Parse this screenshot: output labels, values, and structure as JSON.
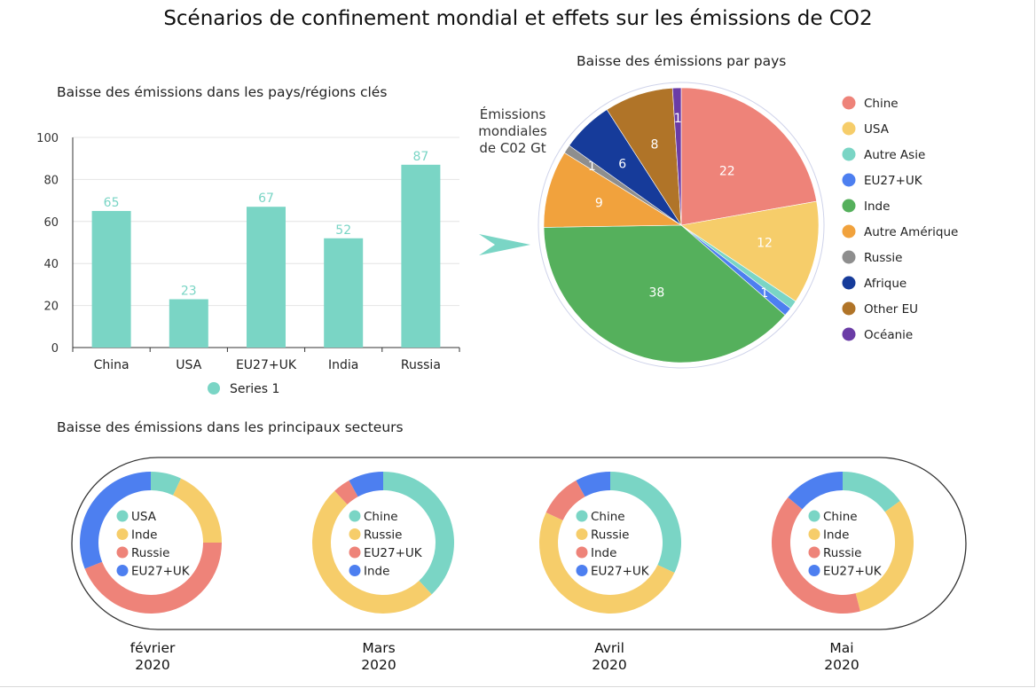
{
  "header": {
    "title": "Scénarios de confinement mondial et effets sur les émissions de CO2"
  },
  "colors": {
    "teal": "#7ad5c5",
    "yellow": "#f6cd6a",
    "salmon": "#ee8379",
    "blue": "#4d7ff0",
    "green": "#55b05c",
    "orange": "#f1a23d",
    "gray": "#8e8e8e",
    "navy": "#163b9a",
    "brown": "#b07428",
    "purple": "#6a3ca6"
  },
  "pie_annotation": [
    "Émissions",
    "mondiales",
    "de C02 Gt"
  ],
  "chart_data": [
    {
      "type": "bar",
      "title": "Baisse des émissions dans les pays/régions clés",
      "categories": [
        "China",
        "USA",
        "EU27+UK",
        "India",
        "Russia"
      ],
      "series": [
        {
          "name": "Series 1",
          "values": [
            65,
            23,
            67,
            52,
            87
          ]
        }
      ],
      "ylim": [
        0,
        100
      ],
      "yticks": [
        "0",
        "20",
        "40",
        "60",
        "80",
        "100"
      ],
      "grid": true,
      "legend": "bottom"
    },
    {
      "type": "pie",
      "title": "Baisse des émissions par pays",
      "labels": [
        "Chine",
        "USA",
        "Autre Asie",
        "EU27+UK",
        "Inde",
        "Autre Amérique",
        "Russie",
        "Afrique",
        "Other EU",
        "Océanie"
      ],
      "values": [
        22,
        12,
        1,
        1,
        38,
        9,
        1,
        6,
        8,
        1
      ],
      "display_labels": [
        "22",
        "12",
        "",
        "1",
        "38",
        "9",
        "1",
        "6",
        "8",
        "1"
      ],
      "colors": [
        "#ee8379",
        "#f6cd6a",
        "#7ad5c5",
        "#4d7ff0",
        "#55b05c",
        "#f1a23d",
        "#8e8e8e",
        "#163b9a",
        "#b07428",
        "#6a3ca6"
      ],
      "legend": "right"
    },
    {
      "type": "pie",
      "title": "Baisse des émissions dans les principaux secteurs",
      "period": [
        "février",
        "2020"
      ],
      "labels": [
        "USA",
        "Inde",
        "Russie",
        "EU27+UK"
      ],
      "values": [
        7,
        18,
        44,
        31
      ],
      "colors": [
        "#7ad5c5",
        "#f6cd6a",
        "#ee8379",
        "#4d7ff0"
      ],
      "legend": "center"
    },
    {
      "type": "pie",
      "period": [
        "Mars",
        "2020"
      ],
      "labels": [
        "Chine",
        "Russie",
        "EU27+UK",
        "Inde"
      ],
      "values": [
        38,
        50,
        4,
        8
      ],
      "colors": [
        "#7ad5c5",
        "#f6cd6a",
        "#ee8379",
        "#4d7ff0"
      ],
      "legend": "center"
    },
    {
      "type": "pie",
      "period": [
        "Avril",
        "2020"
      ],
      "labels": [
        "Chine",
        "Russie",
        "Inde",
        "EU27+UK"
      ],
      "values": [
        32,
        50,
        10,
        8
      ],
      "colors": [
        "#7ad5c5",
        "#f6cd6a",
        "#ee8379",
        "#4d7ff0"
      ],
      "legend": "center"
    },
    {
      "type": "pie",
      "period": [
        "Mai",
        "2020"
      ],
      "labels": [
        "Chine",
        "Inde",
        "Russie",
        "EU27+UK"
      ],
      "values": [
        15,
        31,
        40,
        14
      ],
      "colors": [
        "#7ad5c5",
        "#f6cd6a",
        "#ee8379",
        "#4d7ff0"
      ],
      "legend": "center"
    }
  ]
}
